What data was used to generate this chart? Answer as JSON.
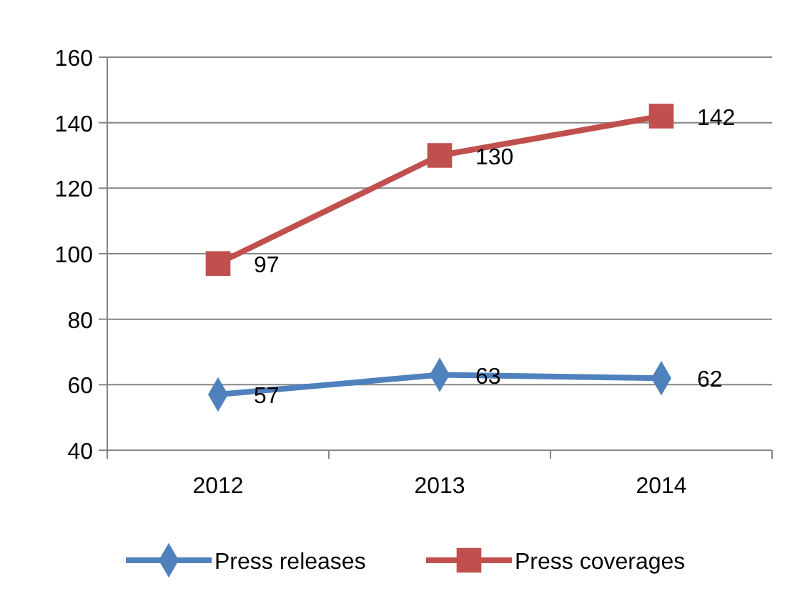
{
  "chart_data": {
    "type": "line",
    "categories": [
      "2012",
      "2013",
      "2014"
    ],
    "series": [
      {
        "name": "Press releases",
        "color": "#4f81bd",
        "values": [
          57,
          63,
          62
        ],
        "marker": "diamond"
      },
      {
        "name": "Press coverages",
        "color": "#c0504d",
        "values": [
          97,
          130,
          142
        ],
        "marker": "square"
      }
    ],
    "ylim": [
      40,
      160
    ],
    "yticks": [
      40,
      60,
      80,
      100,
      120,
      140,
      160
    ],
    "grid": "y",
    "legend": "bottom",
    "data_labels": true,
    "line_style": "solid"
  }
}
